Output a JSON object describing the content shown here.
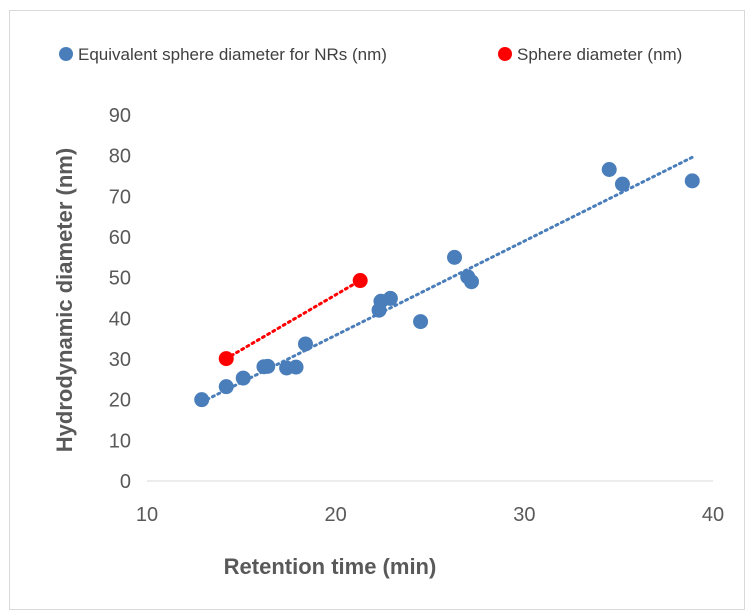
{
  "chart_data": {
    "type": "scatter",
    "xlabel": "Retention time (min)",
    "ylabel": "Hydrodynamic diameter (nm)",
    "xlim": [
      10,
      40
    ],
    "ylim": [
      0,
      90
    ],
    "x_ticks": [
      "10",
      "20",
      "30",
      "40"
    ],
    "y_ticks": [
      "0",
      "10",
      "20",
      "30",
      "40",
      "50",
      "60",
      "70",
      "80",
      "90"
    ],
    "grid": false,
    "legend_position": "top",
    "trendlines": "linear (dotted)",
    "series": [
      {
        "name": "Equivalent sphere diameter for NRs (nm)",
        "color": "#4a7ebb",
        "points": [
          {
            "x": 12.9,
            "y": 20
          },
          {
            "x": 14.2,
            "y": 23.2
          },
          {
            "x": 15.1,
            "y": 25.3
          },
          {
            "x": 16.2,
            "y": 28.1
          },
          {
            "x": 16.4,
            "y": 28.2
          },
          {
            "x": 17.4,
            "y": 27.8
          },
          {
            "x": 17.9,
            "y": 28
          },
          {
            "x": 18.4,
            "y": 33.7
          },
          {
            "x": 22.3,
            "y": 42
          },
          {
            "x": 22.4,
            "y": 44.2
          },
          {
            "x": 22.9,
            "y": 44.9
          },
          {
            "x": 24.5,
            "y": 39.2
          },
          {
            "x": 26.3,
            "y": 55
          },
          {
            "x": 27,
            "y": 50.2
          },
          {
            "x": 27.2,
            "y": 49
          },
          {
            "x": 34.5,
            "y": 76.6
          },
          {
            "x": 35.2,
            "y": 73
          },
          {
            "x": 38.9,
            "y": 73.8
          }
        ],
        "trend": {
          "x": [
            12.9,
            38.9
          ],
          "y": [
            19.4,
            79.6
          ]
        }
      },
      {
        "name": "Sphere diameter (nm)",
        "color": "#ff0000",
        "points": [
          {
            "x": 14.2,
            "y": 30.1
          },
          {
            "x": 21.3,
            "y": 49.3
          }
        ],
        "trend": {
          "x": [
            14.2,
            21.3
          ],
          "y": [
            30.1,
            49.3
          ]
        }
      }
    ]
  }
}
